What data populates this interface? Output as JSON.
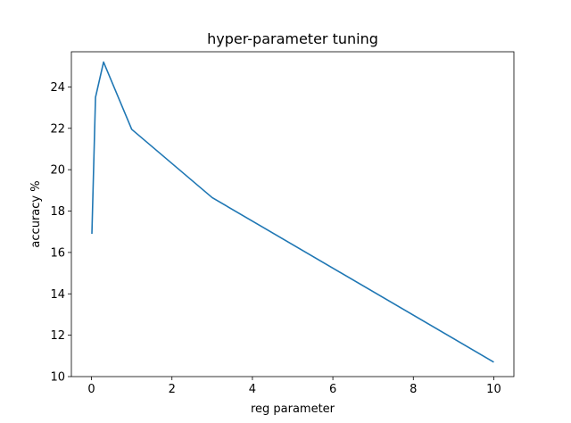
{
  "chart_data": {
    "type": "line",
    "title": "hyper-parameter tuning",
    "xlabel": "reg parameter",
    "ylabel": "accuracy %",
    "xlim": [
      -0.5,
      10.5
    ],
    "ylim": [
      10,
      25.7
    ],
    "xticks": [
      0,
      2,
      4,
      6,
      8,
      10
    ],
    "yticks": [
      10,
      12,
      14,
      16,
      18,
      20,
      22,
      24
    ],
    "grid": false,
    "series": [
      {
        "color": "#1f77b4",
        "x": [
          0.01,
          0.1,
          0.3,
          1,
          3,
          10
        ],
        "y": [
          16.9,
          23.5,
          25.2,
          21.95,
          18.65,
          10.7
        ]
      }
    ]
  }
}
